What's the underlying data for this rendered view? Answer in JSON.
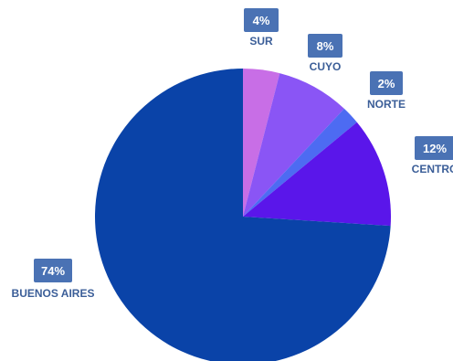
{
  "chart_data": {
    "type": "pie",
    "start_angle": "top",
    "direction": "clockwise",
    "legend": "none",
    "slices": [
      {
        "label": "SUR",
        "value": 4,
        "display": "4%",
        "color": "#c86ee6"
      },
      {
        "label": "CUYO",
        "value": 8,
        "display": "8%",
        "color": "#8a55f5"
      },
      {
        "label": "NORTE",
        "value": 2,
        "display": "2%",
        "color": "#4d6bf2"
      },
      {
        "label": "CENTRO",
        "value": 12,
        "display": "12%",
        "color": "#5a16ea"
      },
      {
        "label": "BUENOS AIRES",
        "value": 74,
        "display": "74%",
        "color": "#0a43a8"
      }
    ],
    "label_style": {
      "badge_color": "#4a72b4",
      "badge_text_color": "#ffffff",
      "category_text_color": "#3b5e98"
    }
  }
}
